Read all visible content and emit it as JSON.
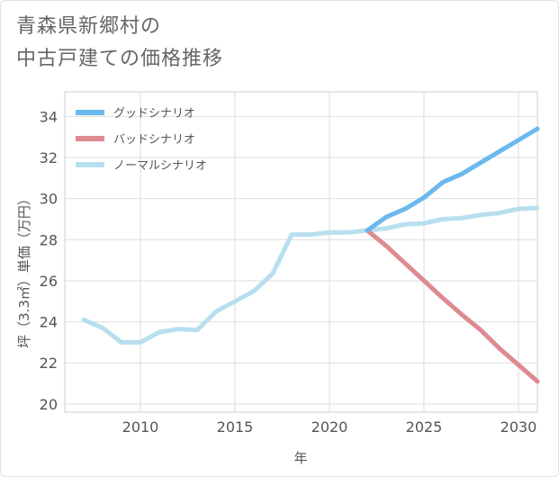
{
  "title": {
    "line1": "青森県新郷村の",
    "line2": "中古戸建ての価格推移"
  },
  "chart_data": {
    "type": "line",
    "xlabel": "年",
    "ylabel": "坪（3.3㎡）単価（万円）",
    "xlim": [
      2006,
      2031
    ],
    "ylim": [
      19.6,
      35.2
    ],
    "xticks": [
      2010,
      2015,
      2020,
      2025,
      2030
    ],
    "yticks": [
      20,
      22,
      24,
      26,
      28,
      30,
      32,
      34
    ],
    "legend_position": "top-left",
    "grid": true,
    "series": [
      {
        "name": "グッドシナリオ",
        "color": "#6cb8ef",
        "x": [
          2022,
          2023,
          2024,
          2025,
          2026,
          2027,
          2028,
          2029,
          2030,
          2031
        ],
        "y": [
          28.45,
          29.1,
          29.5,
          30.05,
          30.8,
          31.2,
          31.75,
          32.3,
          32.85,
          33.4
        ]
      },
      {
        "name": "バッドシナリオ",
        "color": "#dd8a92",
        "x": [
          2022,
          2023,
          2024,
          2025,
          2026,
          2027,
          2028,
          2029,
          2030,
          2031
        ],
        "y": [
          28.45,
          27.7,
          26.85,
          26.0,
          25.15,
          24.35,
          23.6,
          22.7,
          21.9,
          21.1
        ]
      },
      {
        "name": "ノーマルシナリオ",
        "color": "#b8dff0",
        "x": [
          2007,
          2008,
          2009,
          2010,
          2011,
          2012,
          2013,
          2014,
          2015,
          2016,
          2017,
          2018,
          2019,
          2020,
          2021,
          2022,
          2023,
          2024,
          2025,
          2026,
          2027,
          2028,
          2029,
          2030,
          2031
        ],
        "y": [
          24.1,
          23.7,
          23.0,
          23.0,
          23.5,
          23.65,
          23.6,
          24.5,
          25.0,
          25.5,
          26.35,
          28.25,
          28.25,
          28.35,
          28.35,
          28.45,
          28.55,
          28.75,
          28.8,
          29.0,
          29.05,
          29.2,
          29.3,
          29.5,
          29.55
        ]
      }
    ]
  }
}
